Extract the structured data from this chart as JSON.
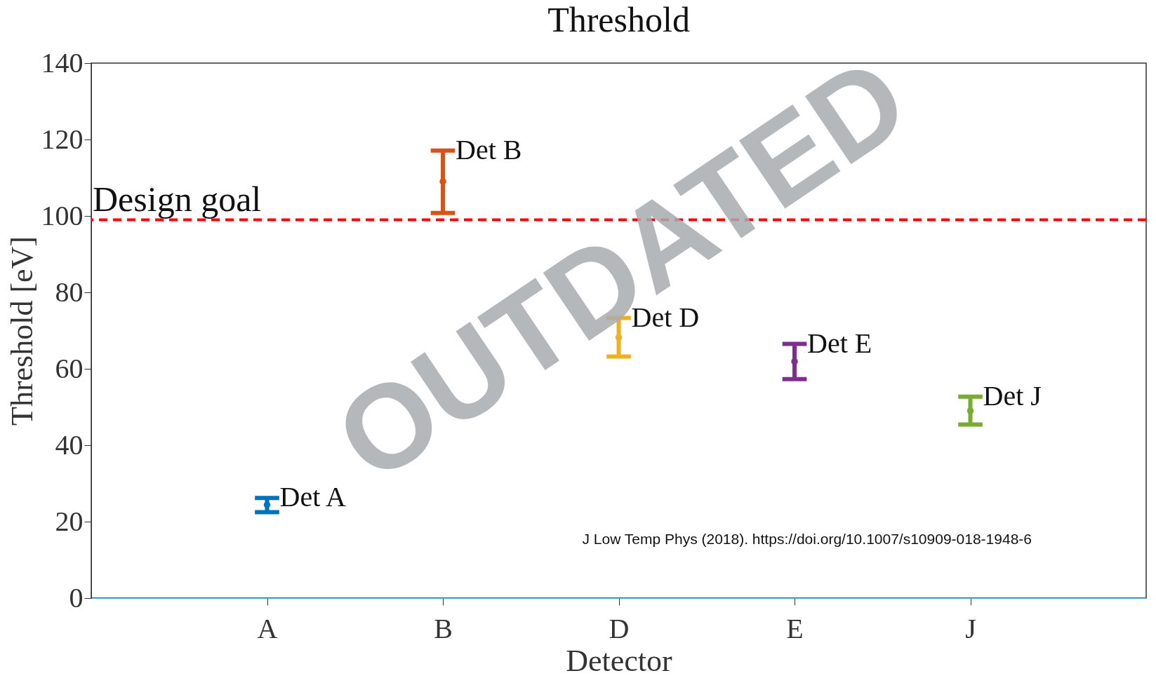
{
  "chart_data": {
    "type": "scatter",
    "title": "Threshold",
    "xlabel": "Detector",
    "ylabel": "Threshold [eV]",
    "categories": [
      "A",
      "B",
      "D",
      "E",
      "J"
    ],
    "ylim": [
      0,
      140
    ],
    "yticks": [
      0,
      20,
      40,
      60,
      80,
      100,
      120,
      140
    ],
    "grid": false,
    "marker": "circle",
    "series": [
      {
        "name": "Det A",
        "color": "#0072bd",
        "values": [
          24.4,
          null,
          null,
          null,
          null
        ],
        "errors": [
          [
            22.5,
            26.2
          ],
          null,
          null,
          null,
          null
        ]
      },
      {
        "name": "Det B",
        "color": "#d95319",
        "values": [
          null,
          109,
          null,
          null,
          null
        ],
        "errors": [
          null,
          [
            100.8,
            117.1
          ],
          null,
          null,
          null
        ]
      },
      {
        "name": "Det D",
        "color": "#edb120",
        "values": [
          null,
          null,
          68.2,
          null,
          null
        ],
        "errors": [
          null,
          null,
          [
            63.2,
            73.3
          ],
          null,
          null
        ]
      },
      {
        "name": "Det E",
        "color": "#7e2f8e",
        "values": [
          null,
          null,
          null,
          61.9,
          null
        ],
        "errors": [
          null,
          null,
          null,
          [
            57.3,
            66.5
          ],
          null
        ]
      },
      {
        "name": "Det J",
        "color": "#77ac30",
        "values": [
          null,
          null,
          null,
          null,
          49
        ],
        "errors": [
          null,
          null,
          null,
          null,
          [
            45.4,
            52.7
          ]
        ]
      }
    ],
    "ref_lines": [
      {
        "axis": "y",
        "value": 99,
        "label": "Design goal",
        "color": "#ff0000",
        "line_style": "dashed"
      }
    ],
    "annotations": [
      "OUTDATED",
      "J Low Temp Phys (2018). https://doi.org/10.1007/s10909-018-1948-6"
    ]
  }
}
